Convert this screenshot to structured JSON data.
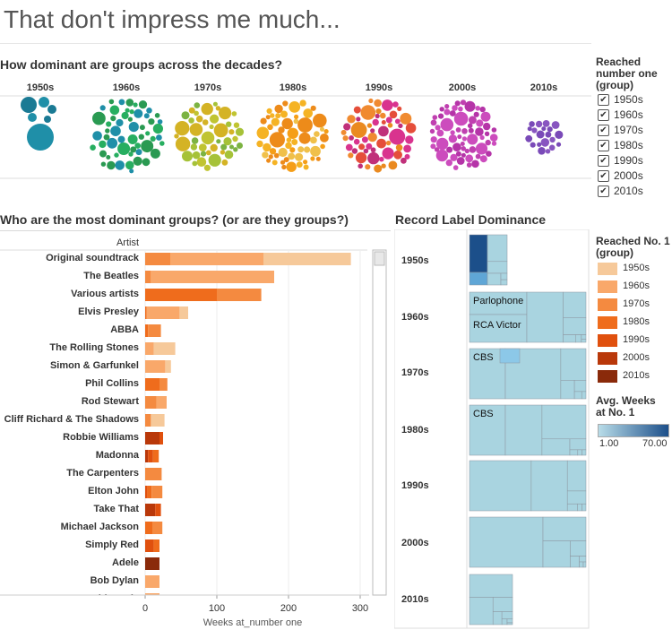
{
  "title": "That don't impress me much...",
  "bubble_section": {
    "title": "How dominant are groups across the decades?"
  },
  "bar_section": {
    "title": "Who are the most dominant groups? (or are they groups?)",
    "artist_header": "Artist"
  },
  "treemap_section": {
    "title": "Record Label Dominance",
    "labels": [
      "Parlophone",
      "RCA Victor",
      "CBS",
      "CBS"
    ]
  },
  "legend_filter": {
    "title": [
      "Reached",
      "number one",
      "(group)"
    ],
    "items": [
      "1950s",
      "1960s",
      "1970s",
      "1980s",
      "1990s",
      "2000s",
      "2010s"
    ]
  },
  "legend_color": {
    "title": [
      "Reached No. 1",
      "(group)"
    ],
    "items": [
      "1950s",
      "1960s",
      "1970s",
      "1980s",
      "1990s",
      "2000s",
      "2010s"
    ],
    "colors": [
      "#f6c99a",
      "#f9a86a",
      "#f48a40",
      "#ef6c1c",
      "#e0500e",
      "#b9380a",
      "#8a2a0a"
    ]
  },
  "legend_weeks": {
    "title": [
      "Avg. Weeks",
      "at No. 1"
    ],
    "min": "1.00",
    "max": "70.00",
    "color_low": "#b8dce8",
    "color_high": "#1c4f8a"
  },
  "chart_data": [
    {
      "type": "scatter",
      "subtype": "packed-bubbles",
      "title": "How dominant are groups across the decades?",
      "categories": [
        "1950s",
        "1960s",
        "1970s",
        "1980s",
        "1990s",
        "2000s",
        "2010s"
      ],
      "approx_bubble_counts": [
        6,
        55,
        65,
        70,
        80,
        70,
        20
      ],
      "palette": [
        [
          "#1f8fa8",
          "#1a7a94"
        ],
        [
          "#2a9a52",
          "#27ae60",
          "#1f8fa8"
        ],
        [
          "#7cb342",
          "#a6c238",
          "#c0c432",
          "#d4b325"
        ],
        [
          "#f5b324",
          "#f59e18",
          "#ed8b1a",
          "#f0c04a"
        ],
        [
          "#e54e3a",
          "#d9338e",
          "#ea8a20",
          "#c0307a",
          "#f08a30"
        ],
        [
          "#c040b0",
          "#b534a8",
          "#cc4cbd"
        ],
        [
          "#8855c0",
          "#7a4ab8"
        ]
      ]
    },
    {
      "type": "bar",
      "stacked": true,
      "title": "Who are the most dominant groups? (or are they groups?)",
      "xlabel": "Weeks at_number one",
      "xlim": [
        0,
        300
      ],
      "xticks": [
        0,
        100,
        200,
        300
      ],
      "categories": [
        "Original soundtrack",
        "The Beatles",
        "Various artists",
        "Elvis Presley",
        "ABBA",
        "The Rolling Stones",
        "Simon & Garfunkel",
        "Phil Collins",
        "Rod Stewart",
        "Cliff Richard & The Shadows",
        "Robbie Williams",
        "Madonna",
        "The Carpenters",
        "Elton John",
        "Take That",
        "Michael Jackson",
        "Simply Red",
        "Adele",
        "Bob Dylan",
        "David Bowie"
      ],
      "series": [
        {
          "name": "2010s",
          "values": [
            0,
            0,
            0,
            0,
            0,
            0,
            0,
            0,
            0,
            0,
            0,
            0,
            0,
            0,
            0,
            0,
            0,
            20,
            0,
            0
          ]
        },
        {
          "name": "2000s",
          "values": [
            0,
            0,
            0,
            0,
            0,
            0,
            0,
            0,
            0,
            0,
            20,
            4,
            0,
            0,
            14,
            0,
            0,
            0,
            0,
            0
          ]
        },
        {
          "name": "1990s",
          "values": [
            0,
            0,
            0,
            0,
            0,
            0,
            0,
            0,
            0,
            0,
            5,
            7,
            0,
            3,
            8,
            0,
            12,
            0,
            0,
            0
          ]
        },
        {
          "name": "1980s",
          "values": [
            0,
            0,
            100,
            2,
            4,
            0,
            0,
            20,
            0,
            0,
            0,
            8,
            0,
            6,
            0,
            10,
            8,
            0,
            0,
            0
          ]
        },
        {
          "name": "1970s",
          "values": [
            35,
            8,
            62,
            0,
            18,
            0,
            0,
            11,
            16,
            8,
            0,
            0,
            23,
            15,
            0,
            14,
            0,
            0,
            0,
            0
          ]
        },
        {
          "name": "1960s",
          "values": [
            130,
            172,
            0,
            46,
            0,
            12,
            28,
            0,
            14,
            0,
            0,
            0,
            0,
            0,
            0,
            0,
            0,
            0,
            20,
            20
          ]
        },
        {
          "name": "1950s",
          "values": [
            122,
            0,
            0,
            12,
            0,
            30,
            8,
            0,
            0,
            19,
            0,
            0,
            0,
            0,
            0,
            0,
            0,
            0,
            0,
            0
          ]
        }
      ]
    },
    {
      "type": "heatmap",
      "subtype": "treemap",
      "title": "Record Label Dominance",
      "categories": [
        "1950s",
        "1960s",
        "1970s",
        "1980s",
        "1990s",
        "2000s",
        "2010s"
      ]
    }
  ]
}
